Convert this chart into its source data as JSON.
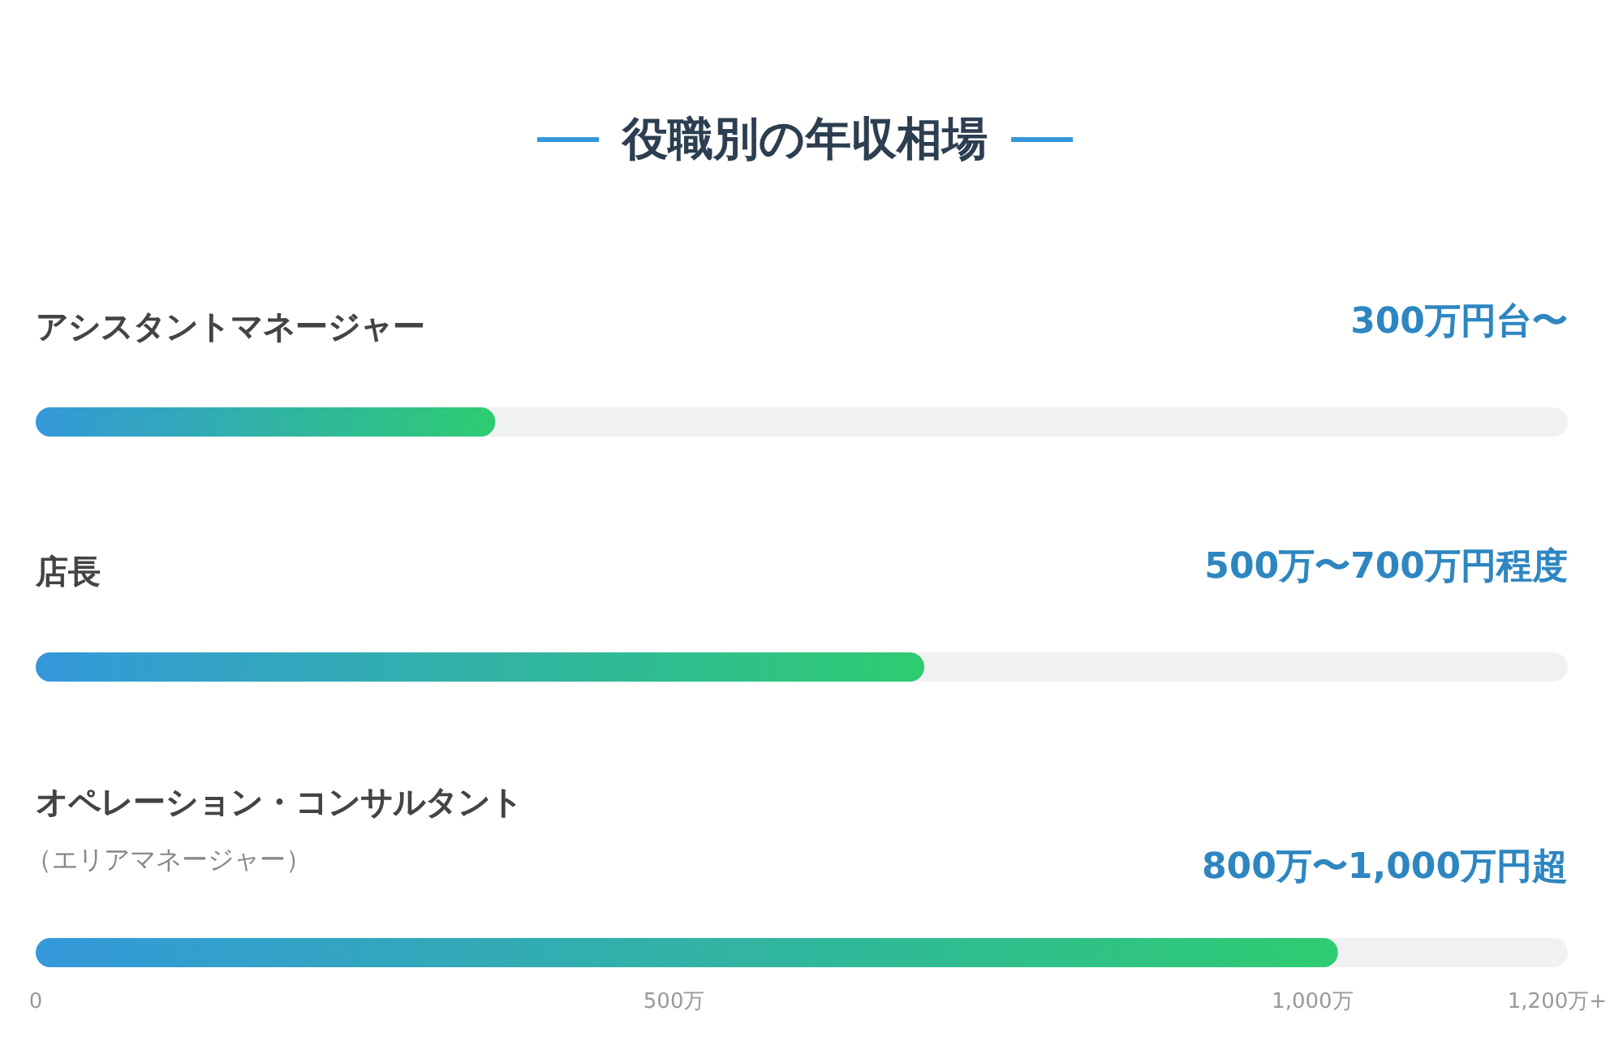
{
  "chart_data": {
    "type": "bar",
    "orientation": "horizontal",
    "title": "役職別の年収相場",
    "categories": [
      "アシスタントマネージャー",
      "店長",
      "オペレーション・コンサルタント"
    ],
    "values": [
      360,
      696,
      1020
    ],
    "color": "#2ecc71",
    "xlim": [
      0,
      1200
    ],
    "xticks": [
      0,
      {
        "value": 500,
        "label": "500万"
      },
      {
        "value": 1000,
        "label": "1,000万"
      },
      {
        "value": 1200,
        "label": "1,200万+"
      }
    ],
    "annotations": [
      "300万円台〜",
      "500万〜700万円程度",
      "800万〜1,000万円超",
      "（エリアマネージャー）"
    ]
  }
}
